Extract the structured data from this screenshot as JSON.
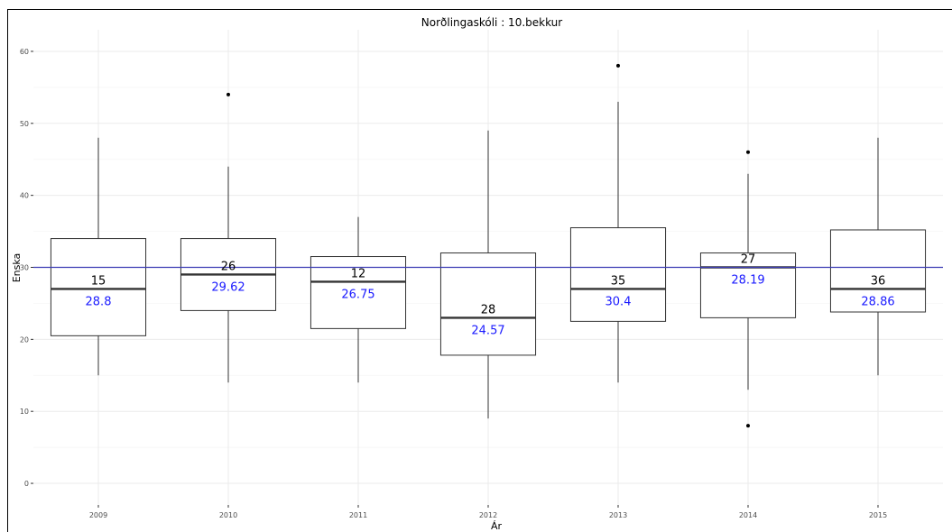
{
  "chart_data": {
    "type": "boxplot",
    "title": "Norðlingaskóli : 10.bekkur",
    "xlabel": "Ár",
    "ylabel": "Enska",
    "ylim": [
      -3,
      63
    ],
    "yticks": [
      0,
      10,
      20,
      30,
      40,
      50,
      60
    ],
    "reference_line": 30,
    "grid": true,
    "colors": {
      "reference_line": "#3c3cb4",
      "mean_text": "#1a1aff",
      "count_text": "#000000"
    },
    "categories": [
      "2009",
      "2010",
      "2011",
      "2012",
      "2013",
      "2014",
      "2015"
    ],
    "boxes": [
      {
        "x": "2009",
        "whisker_low": 15,
        "q1": 20.5,
        "median": 27,
        "q3": 34,
        "whisker_high": 48,
        "outliers": [],
        "count": "15",
        "mean": "28.8"
      },
      {
        "x": "2010",
        "whisker_low": 14,
        "q1": 24,
        "median": 29,
        "q3": 34,
        "whisker_high": 44,
        "outliers": [
          54
        ],
        "count": "26",
        "mean": "29.62"
      },
      {
        "x": "2011",
        "whisker_low": 14,
        "q1": 21.5,
        "median": 28,
        "q3": 31.5,
        "whisker_high": 37,
        "outliers": [],
        "count": "12",
        "mean": "26.75"
      },
      {
        "x": "2012",
        "whisker_low": 9,
        "q1": 17.8,
        "median": 23,
        "q3": 32,
        "whisker_high": 49,
        "outliers": [],
        "count": "28",
        "mean": "24.57"
      },
      {
        "x": "2013",
        "whisker_low": 14,
        "q1": 22.5,
        "median": 27,
        "q3": 35.5,
        "whisker_high": 53,
        "outliers": [
          58
        ],
        "count": "35",
        "mean": "30.4"
      },
      {
        "x": "2014",
        "whisker_low": 13,
        "q1": 23,
        "median": 30,
        "q3": 32,
        "whisker_high": 43,
        "outliers": [
          46,
          8
        ],
        "count": "27",
        "mean": "28.19"
      },
      {
        "x": "2015",
        "whisker_low": 15,
        "q1": 23.8,
        "median": 27,
        "q3": 35.2,
        "whisker_high": 48,
        "outliers": [],
        "count": "36",
        "mean": "28.86"
      }
    ]
  }
}
